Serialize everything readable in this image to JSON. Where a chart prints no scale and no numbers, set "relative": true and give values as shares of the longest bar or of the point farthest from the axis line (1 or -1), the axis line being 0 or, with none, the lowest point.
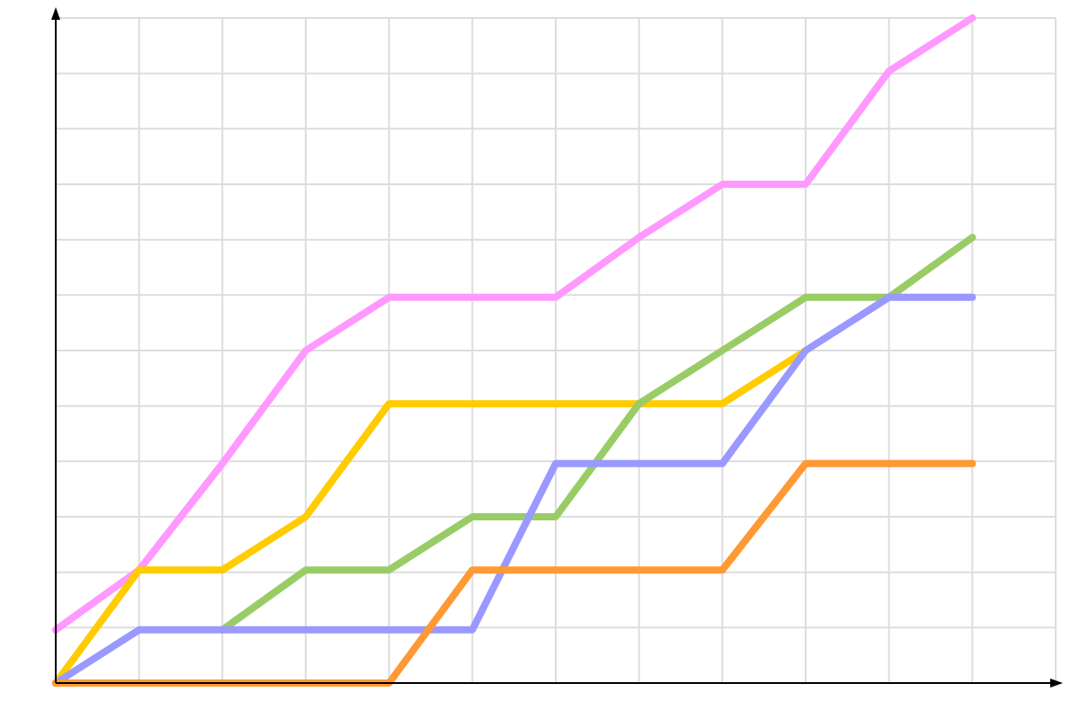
{
  "chart_data": {
    "type": "line",
    "relative": true,
    "grid": true,
    "categories": [
      null,
      null,
      null,
      null,
      null,
      null,
      null,
      null,
      null,
      null,
      null,
      null
    ],
    "series": [
      {
        "color": "#ff99ff",
        "values": [
          0.08,
          0.17,
          0.33,
          0.5,
          0.58,
          0.58,
          0.58,
          0.67,
          0.75,
          0.75,
          0.92,
          1
        ]
      },
      {
        "color": "#ffcc00",
        "values": [
          0,
          0.17,
          0.17,
          0.25,
          0.42,
          0.42,
          0.42,
          0.42,
          0.42,
          0.5,
          null,
          null
        ]
      },
      {
        "color": "#99cc66",
        "values": [
          null,
          null,
          0.08,
          0.17,
          0.17,
          0.25,
          0.25,
          0.42,
          0.5,
          0.58,
          0.58,
          0.67
        ]
      },
      {
        "color": "#9999ff",
        "values": [
          0,
          0.08,
          0.08,
          0.08,
          0.08,
          0.08,
          0.33,
          0.33,
          0.33,
          0.5,
          0.58,
          0.58
        ]
      },
      {
        "color": "#ff9933",
        "values": [
          0,
          0,
          0,
          0,
          0,
          0.17,
          0.17,
          0.17,
          0.17,
          0.33,
          0.33,
          0.33
        ]
      }
    ]
  }
}
